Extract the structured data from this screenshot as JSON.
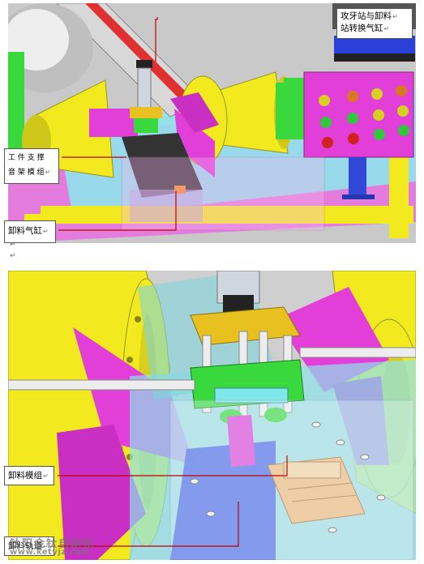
{
  "labels": {
    "tapping_station": [
      "攻牙站与卸料",
      "站转换气缸"
    ],
    "workpiece_support": [
      "工 件 支 撑",
      "音 架 模 组"
    ],
    "unload_cylinder": "卸料气缸",
    "unload_module": "卸料模组",
    "unload_rail": "卸料轨道"
  },
  "para_mark": "↵",
  "watermark": {
    "company": "钛阳金钛自动化",
    "site": "www.ketyjz.com"
  },
  "colors": {
    "yellow": "#f2ea1e",
    "magenta": "#e13fd8",
    "green": "#39d83c",
    "cyan": "#7fe6ea",
    "blue": "#4056e8",
    "grey": "#9a9a9a",
    "callout_line": "#c00000",
    "orange": "#f0a860"
  }
}
